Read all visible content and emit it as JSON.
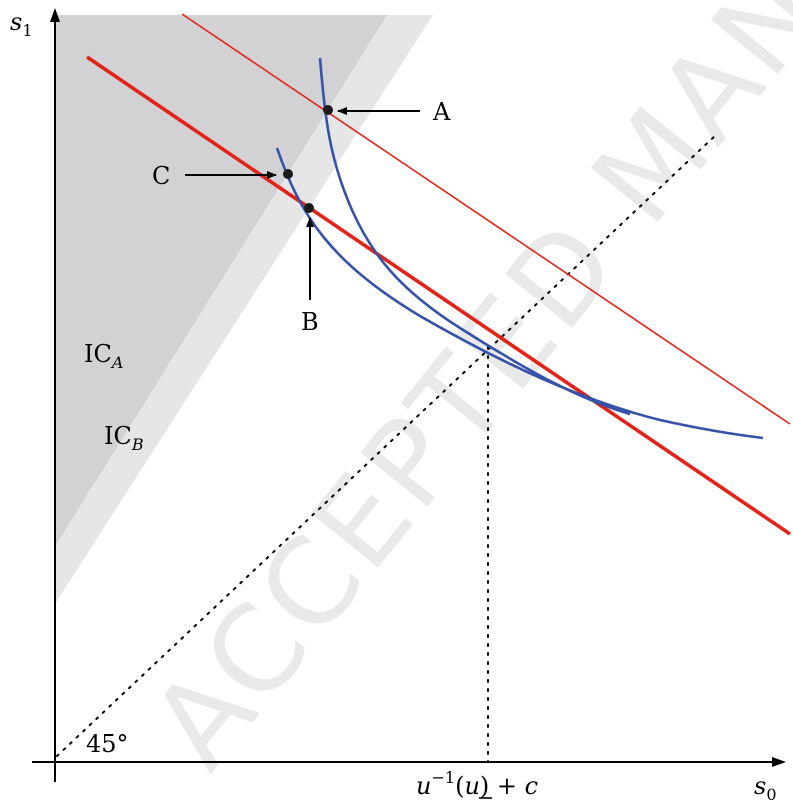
{
  "axes": {
    "x_label": "s",
    "x_label_sub": "0",
    "y_label": "s",
    "y_label_sub": "1",
    "x_tick_label": "u⁻¹(u) + c",
    "x_tick_label_parts": {
      "u1": "u",
      "sup": "−1",
      "open": "(",
      "u2": "u",
      "close": ")",
      "rest": " + c"
    }
  },
  "angle_label": "45°",
  "regions": [
    {
      "label": "IC",
      "sub": "A",
      "color": "#d2d2d4"
    },
    {
      "label": "IC",
      "sub": "B",
      "color": "#e6e6e7"
    }
  ],
  "points": [
    {
      "label": "A"
    },
    {
      "label": "B"
    },
    {
      "label": "C"
    }
  ],
  "watermark": "ACCEPTED MANUSCRIPT",
  "colors": {
    "budget_line": "#e2231a",
    "indifference_curve": "#3552a8",
    "axis": "#000000",
    "point": "#1a1a1a"
  }
}
